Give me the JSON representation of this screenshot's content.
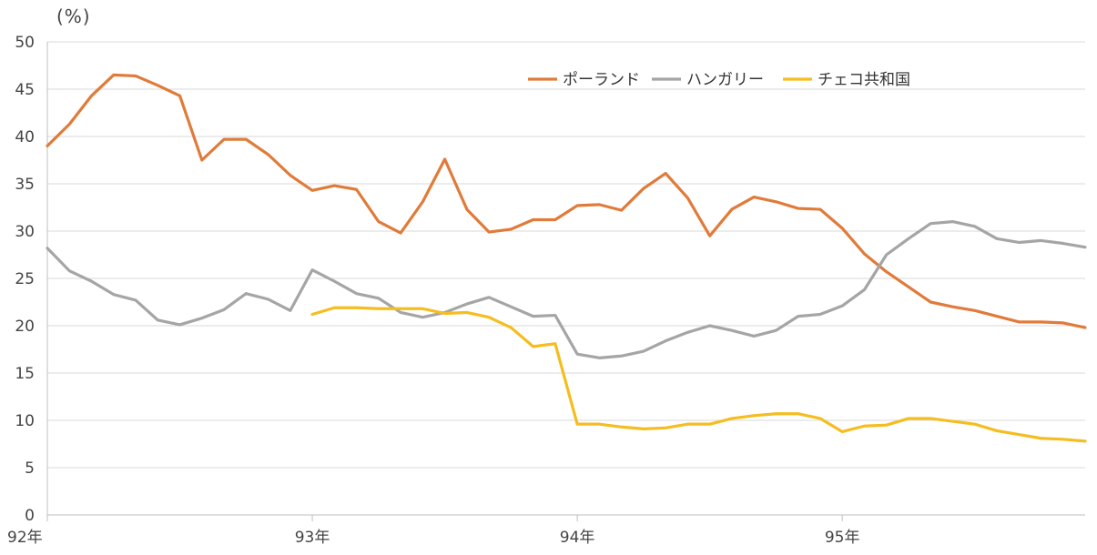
{
  "chart_data": {
    "type": "line",
    "unit_label": "(%)",
    "ylim": [
      0,
      50
    ],
    "y_ticks": [
      0,
      5,
      10,
      15,
      20,
      25,
      30,
      35,
      40,
      45,
      50
    ],
    "x_ticks": [
      {
        "label": "92年",
        "index": 0
      },
      {
        "label": "93年",
        "index": 12
      },
      {
        "label": "94年",
        "index": 24
      },
      {
        "label": "95年",
        "index": 36
      }
    ],
    "x_count": 48,
    "grid": true,
    "legend_position": "top-right",
    "series": [
      {
        "name": "ポーランド",
        "color": "#E07B39",
        "start_index": 0,
        "values": [
          39.0,
          41.3,
          44.3,
          46.5,
          46.4,
          45.4,
          44.3,
          37.5,
          39.7,
          39.7,
          38.1,
          35.9,
          34.3,
          34.8,
          34.4,
          31.0,
          29.8,
          33.1,
          37.6,
          32.3,
          29.9,
          30.2,
          31.2,
          31.2,
          32.7,
          32.8,
          32.2,
          34.5,
          36.1,
          33.5,
          29.5,
          32.3,
          33.6,
          33.1,
          32.4,
          32.3,
          30.3,
          27.6,
          25.7,
          24.1,
          22.5,
          22.0,
          21.6,
          21.0,
          20.4,
          20.4,
          20.3,
          19.8
        ]
      },
      {
        "name": "ハンガリー",
        "color": "#A5A5A5",
        "start_index": 0,
        "values": [
          28.2,
          25.8,
          24.7,
          23.3,
          22.7,
          20.6,
          20.1,
          20.8,
          21.7,
          23.4,
          22.8,
          21.6,
          25.9,
          24.7,
          23.4,
          22.9,
          21.4,
          20.9,
          21.4,
          22.3,
          23.0,
          22.0,
          21.0,
          21.1,
          17.0,
          16.6,
          16.8,
          17.3,
          18.4,
          19.3,
          20.0,
          19.5,
          18.9,
          19.5,
          21.0,
          21.2,
          22.1,
          23.8,
          27.5,
          29.2,
          30.8,
          31.0,
          30.5,
          29.2,
          28.8,
          29.0,
          28.7,
          28.3
        ]
      },
      {
        "name": "チェコ共和国",
        "color": "#F5BD1F",
        "start_index": 12,
        "values": [
          21.2,
          21.9,
          21.9,
          21.8,
          21.8,
          21.8,
          21.3,
          21.4,
          20.9,
          19.8,
          17.8,
          18.1,
          9.6,
          9.6,
          9.3,
          9.1,
          9.2,
          9.6,
          9.6,
          10.2,
          10.5,
          10.7,
          10.7,
          10.2,
          8.8,
          9.4,
          9.5,
          10.2,
          10.2,
          9.9,
          9.6,
          8.9,
          8.5,
          8.1,
          8.0,
          7.8
        ]
      }
    ]
  }
}
